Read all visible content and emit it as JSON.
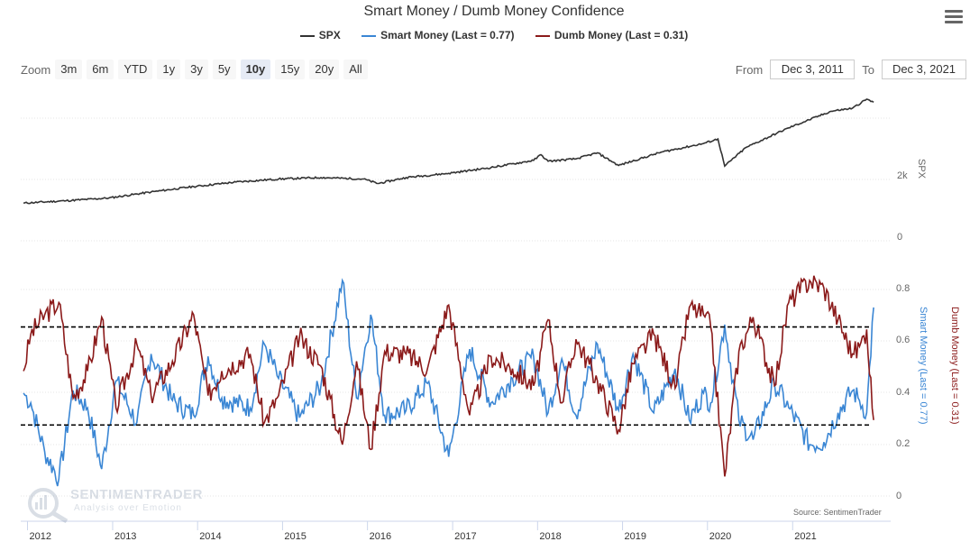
{
  "header": {
    "title": "Smart Money / Dumb Money Confidence"
  },
  "legend": {
    "items": [
      {
        "label": "SPX",
        "color": "#333333"
      },
      {
        "label": "Smart Money (Last = 0.77)",
        "color": "#3a86d4"
      },
      {
        "label": "Dumb Money (Last = 0.31)",
        "color": "#8b1a1a"
      }
    ]
  },
  "toolbar": {
    "zoom_label": "Zoom",
    "zoom_buttons": [
      "3m",
      "6m",
      "YTD",
      "1y",
      "3y",
      "5y",
      "10y",
      "15y",
      "20y",
      "All"
    ],
    "active_zoom": "10y",
    "from_label": "From",
    "from_value": "Dec 3, 2011",
    "to_label": "To",
    "to_value": "Dec 3, 2021"
  },
  "axes": {
    "spx_axis_title": "SPX",
    "spx_ticks": [
      "2k",
      "0"
    ],
    "conf_ticks": [
      "0.8",
      "0.6",
      "0.4",
      "0.2",
      "0"
    ],
    "smart_axis_title": "Smart Money (Last = 0.77)",
    "dumb_axis_title": "Dumb Money (Last = 0.31)",
    "x_ticks": [
      "2012",
      "2013",
      "2014",
      "2015",
      "2016",
      "2017",
      "2018",
      "2019",
      "2020",
      "2021"
    ]
  },
  "branding": {
    "watermark_name": "SENTIMENTRADER",
    "watermark_tag": "Analysis over Emotion",
    "source": "Source: SentimenTrader"
  },
  "chart_data": {
    "type": "line",
    "title": "Smart Money / Dumb Money Confidence",
    "x_range": [
      "2011-12-03",
      "2021-12-03"
    ],
    "reference_lines": [
      0.69,
      0.29
    ],
    "spx": {
      "name": "SPX",
      "color": "#333333",
      "ylim": [
        0,
        5000
      ],
      "dates": [
        "2011-12",
        "2012-06",
        "2012-12",
        "2013-06",
        "2013-12",
        "2014-06",
        "2014-12",
        "2015-06",
        "2015-12",
        "2016-02",
        "2016-06",
        "2016-12",
        "2017-06",
        "2017-12",
        "2018-01",
        "2018-02",
        "2018-06",
        "2018-09",
        "2018-12",
        "2019-06",
        "2019-12",
        "2020-02",
        "2020-03",
        "2020-06",
        "2020-12",
        "2021-06",
        "2021-09",
        "2021-11",
        "2021-12"
      ],
      "values": [
        1250,
        1330,
        1420,
        1620,
        1800,
        1950,
        2050,
        2100,
        2050,
        1900,
        2100,
        2240,
        2430,
        2670,
        2860,
        2640,
        2720,
        2920,
        2500,
        2940,
        3230,
        3380,
        2480,
        3100,
        3750,
        4300,
        4400,
        4700,
        4600
      ]
    },
    "smart_money": {
      "name": "Smart Money (Last = 0.77)",
      "color": "#3a86d4",
      "ylim": [
        0,
        0.95
      ],
      "last": 0.77,
      "dates": [
        "2011-12",
        "2012-01",
        "2012-03",
        "2012-05",
        "2012-07",
        "2012-09",
        "2012-11",
        "2013-01",
        "2013-04",
        "2013-06",
        "2013-09",
        "2013-12",
        "2014-02",
        "2014-04",
        "2014-08",
        "2014-10",
        "2014-12",
        "2015-03",
        "2015-06",
        "2015-09",
        "2015-11",
        "2016-01",
        "2016-03",
        "2016-06",
        "2016-09",
        "2016-12",
        "2017-03",
        "2017-06",
        "2017-09",
        "2017-12",
        "2018-02",
        "2018-04",
        "2018-06",
        "2018-09",
        "2018-12",
        "2019-02",
        "2019-05",
        "2019-08",
        "2019-10",
        "2019-12",
        "2020-01",
        "2020-03",
        "2020-05",
        "2020-07",
        "2020-10",
        "2020-12",
        "2021-03",
        "2021-05",
        "2021-07",
        "2021-09",
        "2021-10",
        "2021-11",
        "2021-12"
      ],
      "values": [
        0.42,
        0.38,
        0.18,
        0.07,
        0.43,
        0.36,
        0.11,
        0.47,
        0.3,
        0.58,
        0.39,
        0.33,
        0.57,
        0.4,
        0.36,
        0.62,
        0.48,
        0.32,
        0.45,
        0.88,
        0.4,
        0.74,
        0.33,
        0.35,
        0.46,
        0.16,
        0.6,
        0.38,
        0.48,
        0.57,
        0.34,
        0.56,
        0.33,
        0.62,
        0.35,
        0.58,
        0.34,
        0.52,
        0.31,
        0.42,
        0.38,
        0.7,
        0.31,
        0.23,
        0.46,
        0.36,
        0.21,
        0.22,
        0.34,
        0.43,
        0.39,
        0.34,
        0.77
      ]
    },
    "dumb_money": {
      "name": "Dumb Money (Last = 0.31)",
      "color": "#8b1a1a",
      "ylim": [
        0,
        0.95
      ],
      "last": 0.31,
      "dates": [
        "2011-12",
        "2012-01",
        "2012-03",
        "2012-05",
        "2012-07",
        "2012-09",
        "2012-11",
        "2013-01",
        "2013-04",
        "2013-06",
        "2013-09",
        "2013-12",
        "2014-02",
        "2014-04",
        "2014-08",
        "2014-10",
        "2014-12",
        "2015-03",
        "2015-06",
        "2015-09",
        "2015-11",
        "2016-01",
        "2016-03",
        "2016-06",
        "2016-09",
        "2016-12",
        "2017-03",
        "2017-06",
        "2017-09",
        "2017-12",
        "2018-02",
        "2018-04",
        "2018-06",
        "2018-09",
        "2018-12",
        "2019-02",
        "2019-05",
        "2019-08",
        "2019-10",
        "2019-12",
        "2020-01",
        "2020-03",
        "2020-05",
        "2020-07",
        "2020-10",
        "2020-12",
        "2021-03",
        "2021-05",
        "2021-07",
        "2021-09",
        "2021-10",
        "2021-11",
        "2021-12"
      ],
      "values": [
        0.51,
        0.66,
        0.74,
        0.79,
        0.4,
        0.51,
        0.73,
        0.36,
        0.62,
        0.41,
        0.55,
        0.74,
        0.41,
        0.51,
        0.58,
        0.3,
        0.41,
        0.65,
        0.53,
        0.21,
        0.55,
        0.19,
        0.59,
        0.58,
        0.52,
        0.78,
        0.33,
        0.57,
        0.52,
        0.45,
        0.72,
        0.38,
        0.64,
        0.47,
        0.27,
        0.54,
        0.66,
        0.44,
        0.77,
        0.74,
        0.69,
        0.08,
        0.59,
        0.73,
        0.45,
        0.79,
        0.88,
        0.85,
        0.72,
        0.58,
        0.61,
        0.68,
        0.31
      ]
    }
  }
}
